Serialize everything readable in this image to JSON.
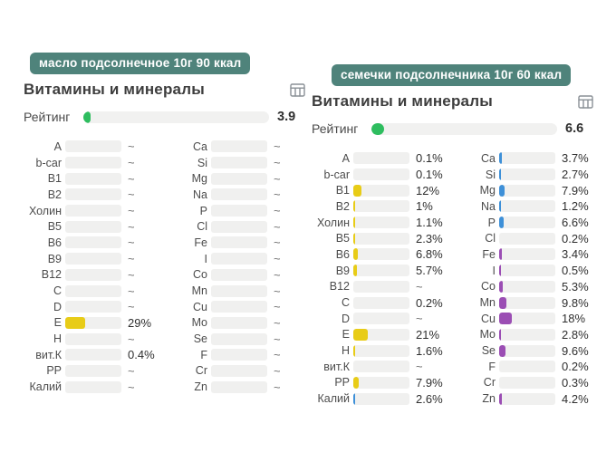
{
  "colors": {
    "badge": "#4f837b",
    "rating_fill": "#2ebd5f",
    "vitamin": "#e8cc17",
    "macro": "#3e90d8",
    "trace": "#9b4eb4",
    "track": "#f0f0ef",
    "icon": "#8a9096"
  },
  "panels": [
    {
      "badge": "масло подсолнечное 10г 90 ккал",
      "title": "Витамины и минералы",
      "rating": {
        "label": "Рейтинг",
        "value": "3.9",
        "percent": 3.9
      },
      "columns": [
        {
          "rows": [
            {
              "label": "A",
              "value": "~",
              "pct": 0,
              "cat": "vitamin"
            },
            {
              "label": "b-car",
              "value": "~",
              "pct": 0,
              "cat": "vitamin"
            },
            {
              "label": "B1",
              "value": "~",
              "pct": 0,
              "cat": "vitamin"
            },
            {
              "label": "B2",
              "value": "~",
              "pct": 0,
              "cat": "vitamin"
            },
            {
              "label": "Холин",
              "value": "~",
              "pct": 0,
              "cat": "vitamin"
            },
            {
              "label": "B5",
              "value": "~",
              "pct": 0,
              "cat": "vitamin"
            },
            {
              "label": "B6",
              "value": "~",
              "pct": 0,
              "cat": "vitamin"
            },
            {
              "label": "B9",
              "value": "~",
              "pct": 0,
              "cat": "vitamin"
            },
            {
              "label": "B12",
              "value": "~",
              "pct": 0,
              "cat": "vitamin"
            },
            {
              "label": "C",
              "value": "~",
              "pct": 0,
              "cat": "vitamin"
            },
            {
              "label": "D",
              "value": "~",
              "pct": 0,
              "cat": "vitamin"
            },
            {
              "label": "E",
              "value": "29%",
              "pct": 29,
              "cat": "vitamin"
            },
            {
              "label": "H",
              "value": "~",
              "pct": 0,
              "cat": "vitamin"
            },
            {
              "label": "вит.К",
              "value": "0.4%",
              "pct": 0.4,
              "cat": "vitamin"
            },
            {
              "label": "PP",
              "value": "~",
              "pct": 0,
              "cat": "vitamin"
            },
            {
              "label": "Калий",
              "value": "~",
              "pct": 0,
              "cat": "macro"
            }
          ]
        },
        {
          "rows": [
            {
              "label": "Ca",
              "value": "~",
              "pct": 0,
              "cat": "macro"
            },
            {
              "label": "Si",
              "value": "~",
              "pct": 0,
              "cat": "macro"
            },
            {
              "label": "Mg",
              "value": "~",
              "pct": 0,
              "cat": "macro"
            },
            {
              "label": "Na",
              "value": "~",
              "pct": 0,
              "cat": "macro"
            },
            {
              "label": "P",
              "value": "~",
              "pct": 0,
              "cat": "macro"
            },
            {
              "label": "Cl",
              "value": "~",
              "pct": 0,
              "cat": "macro"
            },
            {
              "label": "Fe",
              "value": "~",
              "pct": 0,
              "cat": "trace"
            },
            {
              "label": "I",
              "value": "~",
              "pct": 0,
              "cat": "trace"
            },
            {
              "label": "Co",
              "value": "~",
              "pct": 0,
              "cat": "trace"
            },
            {
              "label": "Mn",
              "value": "~",
              "pct": 0,
              "cat": "trace"
            },
            {
              "label": "Cu",
              "value": "~",
              "pct": 0,
              "cat": "trace"
            },
            {
              "label": "Mo",
              "value": "~",
              "pct": 0,
              "cat": "trace"
            },
            {
              "label": "Se",
              "value": "~",
              "pct": 0,
              "cat": "trace"
            },
            {
              "label": "F",
              "value": "~",
              "pct": 0,
              "cat": "trace"
            },
            {
              "label": "Cr",
              "value": "~",
              "pct": 0,
              "cat": "trace"
            },
            {
              "label": "Zn",
              "value": "~",
              "pct": 0,
              "cat": "trace"
            }
          ]
        }
      ]
    },
    {
      "badge": "семечки подсолнечника 10г 60 ккал",
      "title": "Витамины и минералы",
      "rating": {
        "label": "Рейтинг",
        "value": "6.6",
        "percent": 6.6
      },
      "columns": [
        {
          "rows": [
            {
              "label": "A",
              "value": "0.1%",
              "pct": 0.1,
              "cat": "vitamin"
            },
            {
              "label": "b-car",
              "value": "0.1%",
              "pct": 0.1,
              "cat": "vitamin"
            },
            {
              "label": "B1",
              "value": "12%",
              "pct": 12,
              "cat": "vitamin"
            },
            {
              "label": "B2",
              "value": "1%",
              "pct": 1,
              "cat": "vitamin"
            },
            {
              "label": "Холин",
              "value": "1.1%",
              "pct": 1.1,
              "cat": "vitamin"
            },
            {
              "label": "B5",
              "value": "2.3%",
              "pct": 2.3,
              "cat": "vitamin"
            },
            {
              "label": "B6",
              "value": "6.8%",
              "pct": 6.8,
              "cat": "vitamin"
            },
            {
              "label": "B9",
              "value": "5.7%",
              "pct": 5.7,
              "cat": "vitamin"
            },
            {
              "label": "B12",
              "value": "~",
              "pct": 0,
              "cat": "vitamin"
            },
            {
              "label": "C",
              "value": "0.2%",
              "pct": 0.2,
              "cat": "vitamin"
            },
            {
              "label": "D",
              "value": "~",
              "pct": 0,
              "cat": "vitamin"
            },
            {
              "label": "E",
              "value": "21%",
              "pct": 21,
              "cat": "vitamin"
            },
            {
              "label": "H",
              "value": "1.6%",
              "pct": 1.6,
              "cat": "vitamin"
            },
            {
              "label": "вит.К",
              "value": "~",
              "pct": 0,
              "cat": "vitamin"
            },
            {
              "label": "PP",
              "value": "7.9%",
              "pct": 7.9,
              "cat": "vitamin"
            },
            {
              "label": "Калий",
              "value": "2.6%",
              "pct": 2.6,
              "cat": "macro"
            }
          ]
        },
        {
          "rows": [
            {
              "label": "Ca",
              "value": "3.7%",
              "pct": 3.7,
              "cat": "macro"
            },
            {
              "label": "Si",
              "value": "2.7%",
              "pct": 2.7,
              "cat": "macro"
            },
            {
              "label": "Mg",
              "value": "7.9%",
              "pct": 7.9,
              "cat": "macro"
            },
            {
              "label": "Na",
              "value": "1.2%",
              "pct": 1.2,
              "cat": "macro"
            },
            {
              "label": "P",
              "value": "6.6%",
              "pct": 6.6,
              "cat": "macro"
            },
            {
              "label": "Cl",
              "value": "0.2%",
              "pct": 0.2,
              "cat": "macro"
            },
            {
              "label": "Fe",
              "value": "3.4%",
              "pct": 3.4,
              "cat": "trace"
            },
            {
              "label": "I",
              "value": "0.5%",
              "pct": 0.5,
              "cat": "trace"
            },
            {
              "label": "Co",
              "value": "5.3%",
              "pct": 5.3,
              "cat": "trace"
            },
            {
              "label": "Mn",
              "value": "9.8%",
              "pct": 9.8,
              "cat": "trace"
            },
            {
              "label": "Cu",
              "value": "18%",
              "pct": 18,
              "cat": "trace"
            },
            {
              "label": "Mo",
              "value": "2.8%",
              "pct": 2.8,
              "cat": "trace"
            },
            {
              "label": "Se",
              "value": "9.6%",
              "pct": 9.6,
              "cat": "trace"
            },
            {
              "label": "F",
              "value": "0.2%",
              "pct": 0.2,
              "cat": "trace"
            },
            {
              "label": "Cr",
              "value": "0.3%",
              "pct": 0.3,
              "cat": "trace"
            },
            {
              "label": "Zn",
              "value": "4.2%",
              "pct": 4.2,
              "cat": "trace"
            }
          ]
        }
      ]
    }
  ]
}
